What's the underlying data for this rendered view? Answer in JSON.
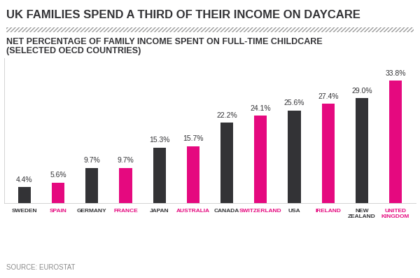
{
  "chart_data": {
    "type": "bar",
    "title": "UK FAMILIES SPEND A THIRD OF THEIR INCOME ON DAYCARE",
    "subtitle": "NET PERCENTAGE OF FAMILY INCOME SPENT ON FULL-TIME CHILDCARE\n(SELECTED OECD COUNTRIES)",
    "categories": [
      "SWEDEN",
      "SPAIN",
      "GERMANY",
      "FRANCE",
      "JAPAN",
      "AUSTRALIA",
      "CANADA",
      "SWITZERLAND",
      "USA",
      "IRELAND",
      "NEW ZEALAND",
      "UNITED KINGDOM"
    ],
    "values": [
      4.4,
      5.6,
      9.7,
      9.7,
      15.3,
      15.7,
      22.2,
      24.1,
      25.6,
      27.4,
      29.0,
      33.8
    ],
    "value_labels": [
      "4.4%",
      "5.6%",
      "9.7%",
      "9.7%",
      "15.3%",
      "15.7%",
      "22.2%",
      "24.1%",
      "25.6%",
      "27.4%",
      "29.0%",
      "33.8%"
    ],
    "colors": [
      "#333336",
      "#e5097f",
      "#333336",
      "#e5097f",
      "#333336",
      "#e5097f",
      "#333336",
      "#e5097f",
      "#333336",
      "#e5097f",
      "#333336",
      "#e5097f"
    ],
    "data_labels": true,
    "tick_labels": "x",
    "ylim": [
      0,
      40
    ],
    "yticks": [],
    "grid": false,
    "source": "SOURCE: EUROSTAT"
  }
}
